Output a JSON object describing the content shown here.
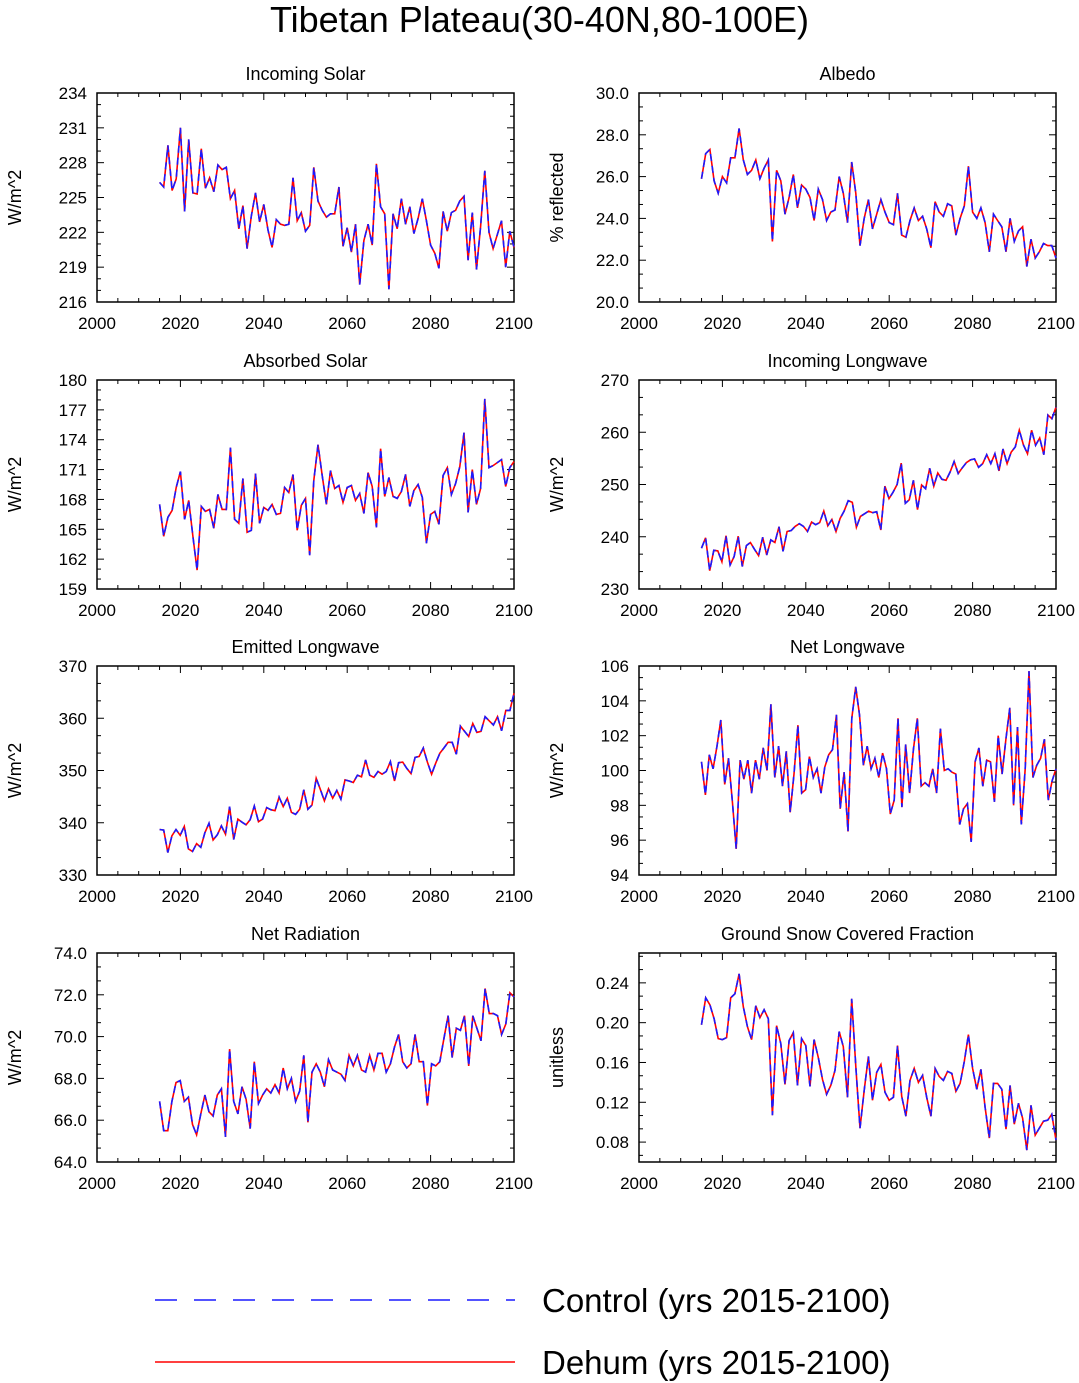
{
  "title": "Tibetan Plateau(30-40N,80-100E)",
  "legend": [
    {
      "label": "Control (yrs 2015-2100)",
      "color": "#1a1aff",
      "style": "dashed"
    },
    {
      "label": "Dehum (yrs 2015-2100)",
      "color": "#ff0000",
      "style": "solid"
    }
  ],
  "chart_data": [
    {
      "type": "line",
      "title": "Incoming Solar",
      "ylabel": "W/m^2",
      "xlim": [
        2000,
        2100
      ],
      "ylim": [
        216,
        234
      ],
      "xticks": [
        2000,
        2020,
        2040,
        2060,
        2080,
        2100
      ],
      "yticks": [
        "216",
        "219",
        "222",
        "225",
        "228",
        "231",
        "234"
      ],
      "x_start": 2015,
      "series": [
        {
          "values": [
            226.3,
            225.9,
            229.5,
            225.6,
            226.6,
            231.0,
            223.8,
            230.0,
            225.4,
            225.3,
            229.2,
            225.8,
            226.7,
            225.5,
            227.8,
            227.4,
            227.6,
            224.9,
            225.6,
            222.3,
            224.3,
            220.6,
            223.4,
            225.4,
            222.9,
            224.4,
            222.2,
            220.7,
            223.1,
            222.7,
            222.6,
            222.7,
            226.7,
            223.0,
            223.7,
            222.1,
            222.6,
            227.6,
            224.7,
            223.9,
            223.3,
            223.6,
            223.6,
            225.9,
            220.8,
            222.4,
            220.3,
            222.7,
            217.5,
            221.3,
            222.7,
            220.9,
            227.9,
            224.2,
            223.6,
            217.1,
            223.6,
            222.3,
            224.9,
            222.7,
            224.2,
            221.9,
            223.2,
            224.9,
            223.0,
            220.9,
            220.2,
            218.9,
            223.8,
            222.1,
            223.7,
            223.9,
            224.7,
            225.1,
            219.6,
            223.7,
            218.8,
            222.5,
            227.3,
            222.0,
            220.6,
            221.8,
            223.0,
            219.0,
            222.1,
            220.7
          ]
        }
      ]
    },
    {
      "type": "line",
      "title": "Albedo",
      "ylabel": "% reflected",
      "xlim": [
        2000,
        2100
      ],
      "ylim": [
        20,
        30
      ],
      "xticks": [
        2000,
        2020,
        2040,
        2060,
        2080,
        2100
      ],
      "yticks": [
        "20.0",
        "22.0",
        "24.0",
        "26.0",
        "28.0",
        "30.0"
      ],
      "x_start": 2015,
      "series": [
        {
          "values": [
            25.9,
            27.1,
            27.3,
            25.8,
            25.2,
            26.0,
            25.7,
            26.9,
            26.9,
            28.3,
            26.8,
            26.1,
            26.3,
            26.8,
            25.9,
            26.4,
            26.8,
            22.9,
            26.3,
            25.8,
            24.2,
            25.0,
            26.1,
            24.5,
            25.6,
            25.4,
            25.0,
            23.9,
            25.4,
            24.9,
            23.9,
            24.3,
            24.4,
            26.0,
            25.2,
            23.8,
            26.7,
            25.2,
            22.7,
            24.0,
            24.9,
            23.5,
            24.2,
            24.9,
            24.3,
            23.8,
            23.7,
            25.2,
            23.2,
            23.1,
            23.9,
            24.5,
            23.9,
            24.1,
            23.5,
            22.6,
            24.8,
            24.3,
            24.1,
            24.7,
            24.6,
            23.2,
            24.0,
            24.6,
            26.5,
            24.3,
            24.0,
            24.5,
            23.8,
            22.4,
            24.2,
            23.9,
            23.6,
            22.4,
            24.0,
            22.9,
            23.4,
            23.6,
            21.7,
            23.0,
            22.1,
            22.4,
            22.8,
            22.7,
            22.7,
            22.1
          ]
        }
      ]
    },
    {
      "type": "line",
      "title": "Absorbed Solar",
      "ylabel": "W/m^2",
      "xlim": [
        2000,
        2100
      ],
      "ylim": [
        159,
        180
      ],
      "xticks": [
        2000,
        2020,
        2040,
        2060,
        2080,
        2100
      ],
      "yticks": [
        "159",
        "162",
        "165",
        "168",
        "171",
        "174",
        "177",
        "180"
      ],
      "x_start": 2015,
      "series": [
        {
          "values": [
            167.5,
            164.3,
            166.2,
            166.9,
            169.2,
            170.8,
            166.0,
            167.9,
            164.3,
            160.9,
            167.3,
            166.8,
            167.0,
            165.1,
            168.5,
            167.0,
            167.0,
            173.2,
            166.0,
            165.6,
            170.1,
            164.7,
            164.9,
            170.6,
            165.6,
            167.2,
            166.9,
            167.5,
            166.5,
            166.6,
            169.2,
            168.7,
            170.5,
            164.9,
            167.4,
            168.1,
            162.4,
            169.9,
            173.5,
            170.4,
            167.5,
            170.9,
            169.1,
            169.4,
            167.7,
            169.2,
            169.4,
            167.9,
            168.6,
            166.6,
            170.7,
            169.3,
            165.2,
            173.1,
            168.3,
            170.2,
            168.3,
            168.1,
            168.8,
            170.5,
            167.3,
            168.9,
            169.5,
            168.2,
            163.6,
            166.5,
            166.8,
            165.5,
            170.4,
            171.2,
            168.5,
            169.6,
            171.3,
            174.7,
            166.7,
            171.0,
            167.5,
            169.1,
            178.1,
            171.2,
            171.4,
            171.7,
            172.0,
            169.3,
            171.2,
            171.8
          ]
        }
      ]
    },
    {
      "type": "line",
      "title": "Incoming Longwave",
      "ylabel": "W/m^2",
      "xlim": [
        2000,
        2100
      ],
      "ylim": [
        230,
        270
      ],
      "xticks": [
        2000,
        2020,
        2040,
        2060,
        2080,
        2100
      ],
      "yticks": [
        "230",
        "240",
        "250",
        "260",
        "270"
      ],
      "x_start": 2015,
      "series": [
        {
          "values": [
            237.8,
            239.8,
            233.5,
            237.4,
            237.3,
            235.2,
            240.2,
            234.6,
            236.2,
            240.1,
            234.3,
            238.3,
            238.9,
            237.6,
            236.4,
            239.9,
            236.5,
            239.4,
            238.9,
            241.9,
            237.2,
            241.0,
            241.2,
            242.0,
            242.5,
            242.0,
            241.0,
            242.8,
            242.3,
            242.7,
            244.9,
            242.1,
            243.3,
            241.0,
            243.5,
            244.9,
            246.9,
            246.6,
            241.8,
            243.9,
            244.4,
            244.9,
            244.6,
            244.8,
            241.3,
            249.7,
            247.3,
            248.5,
            250.0,
            254.1,
            246.4,
            247.1,
            250.8,
            245.2,
            249.9,
            249.2,
            253.1,
            249.7,
            252.2,
            251.0,
            250.8,
            252.4,
            254.4,
            252.1,
            253.2,
            254.2,
            254.7,
            254.9,
            253.3,
            254.0,
            255.7,
            254.0,
            255.9,
            252.6,
            256.8,
            254.0,
            256.2,
            257.2,
            260.4,
            257.6,
            255.9,
            260.4,
            257.5,
            258.9,
            255.7,
            263.3,
            262.6,
            264.8
          ]
        }
      ]
    },
    {
      "type": "line",
      "title": "Emitted Longwave",
      "ylabel": "W/m^2",
      "xlim": [
        2000,
        2100
      ],
      "ylim": [
        330,
        370
      ],
      "xticks": [
        2000,
        2020,
        2040,
        2060,
        2080,
        2100
      ],
      "yticks": [
        "330",
        "340",
        "350",
        "360",
        "370"
      ],
      "x_start": 2015,
      "series": [
        {
          "values": [
            338.7,
            338.6,
            334.3,
            337.5,
            338.7,
            337.6,
            339.3,
            335.0,
            334.5,
            336.0,
            335.3,
            338.1,
            339.9,
            336.7,
            337.7,
            339.4,
            337.8,
            343.1,
            336.8,
            340.7,
            340.1,
            339.6,
            340.6,
            343.2,
            340.2,
            340.7,
            342.9,
            342.5,
            342.3,
            344.9,
            343.1,
            344.7,
            342.0,
            341.6,
            342.6,
            346.3,
            342.6,
            343.4,
            348.5,
            346.4,
            344.2,
            346.5,
            344.7,
            346.2,
            344.5,
            348.2,
            348.0,
            347.7,
            349.1,
            348.8,
            352.0,
            349.1,
            348.7,
            349.8,
            349.3,
            349.8,
            351.7,
            348.0,
            351.5,
            351.6,
            350.4,
            349.4,
            352.5,
            352.7,
            354.3,
            351.6,
            349.3,
            351.4,
            353.3,
            354.3,
            355.4,
            355.4,
            353.1,
            358.5,
            357.5,
            356.5,
            359.0,
            357.3,
            357.5,
            360.3,
            359.5,
            358.7,
            360.3,
            357.6,
            361.5,
            361.5,
            364.8
          ]
        }
      ]
    },
    {
      "type": "line",
      "title": "Net Longwave",
      "ylabel": "W/m^2",
      "xlim": [
        2000,
        2100
      ],
      "ylim": [
        94,
        106
      ],
      "xticks": [
        2000,
        2020,
        2040,
        2060,
        2080,
        2100
      ],
      "yticks": [
        "94",
        "96",
        "98",
        "100",
        "102",
        "104",
        "106"
      ],
      "x_start": 2015,
      "series": [
        {
          "values": [
            100.5,
            98.6,
            100.9,
            100.1,
            101.4,
            102.9,
            99.2,
            100.7,
            98.2,
            95.5,
            100.6,
            99.5,
            100.6,
            98.7,
            100.6,
            99.5,
            101.3,
            100.0,
            103.8,
            99.6,
            101.4,
            99.1,
            101.1,
            97.6,
            99.8,
            102.6,
            98.7,
            98.9,
            100.8,
            99.6,
            100.1,
            98.7,
            100.2,
            100.9,
            101.2,
            103.2,
            97.8,
            99.9,
            96.5,
            103.0,
            104.8,
            103.2,
            100.3,
            101.4,
            100.1,
            100.7,
            99.6,
            101.0,
            100.1,
            97.5,
            98.3,
            103.0,
            97.9,
            101.5,
            98.7,
            101.2,
            103.0,
            99.1,
            99.3,
            99.1,
            100.1,
            98.7,
            102.4,
            100.0,
            100.1,
            99.9,
            99.8,
            96.9,
            97.8,
            98.1,
            95.9,
            100.5,
            101.3,
            99.1,
            100.6,
            100.5,
            98.2,
            102.0,
            99.8,
            101.8,
            103.6,
            98.0,
            102.5,
            96.9,
            100.1,
            105.7,
            99.6,
            100.3,
            100.7,
            101.8,
            98.3,
            99.4,
            100.1
          ]
        }
      ]
    },
    {
      "type": "line",
      "title": "Net Radiation",
      "ylabel": "W/m^2",
      "xlim": [
        2000,
        2100
      ],
      "ylim": [
        64,
        74
      ],
      "xticks": [
        2000,
        2020,
        2040,
        2060,
        2080,
        2100
      ],
      "yticks": [
        "64.0",
        "66.0",
        "68.0",
        "70.0",
        "72.0",
        "74.0"
      ],
      "x_start": 2015,
      "series": [
        {
          "values": [
            66.9,
            65.5,
            65.5,
            66.9,
            67.8,
            67.9,
            66.9,
            67.1,
            65.8,
            65.3,
            66.3,
            67.2,
            66.4,
            66.2,
            67.2,
            67.5,
            65.2,
            69.4,
            66.9,
            66.3,
            67.6,
            67.0,
            65.6,
            68.8,
            66.8,
            67.2,
            67.5,
            67.3,
            67.7,
            67.3,
            68.5,
            67.5,
            68.0,
            66.9,
            67.4,
            69.1,
            65.9,
            68.3,
            68.7,
            68.3,
            67.6,
            68.9,
            68.4,
            68.3,
            68.2,
            67.9,
            69.1,
            68.6,
            69.1,
            68.4,
            68.3,
            69.1,
            68.4,
            69.2,
            69.2,
            68.3,
            68.7,
            69.5,
            70.1,
            68.8,
            68.5,
            68.7,
            70.1,
            68.8,
            68.8,
            66.7,
            68.7,
            68.6,
            68.8,
            69.9,
            71.0,
            69.0,
            70.4,
            70.3,
            71.0,
            68.6,
            71.0,
            70.4,
            69.8,
            72.3,
            71.1,
            71.1,
            71.0,
            70.1,
            70.6,
            72.1,
            71.9
          ]
        }
      ]
    },
    {
      "type": "line",
      "title": "Ground Snow Covered Fraction",
      "ylabel": "unitless",
      "xlim": [
        2000,
        2100
      ],
      "ylim": [
        0.06,
        0.27
      ],
      "xticks": [
        2000,
        2020,
        2040,
        2060,
        2080,
        2100
      ],
      "yticks": [
        "0.08",
        "0.12",
        "0.16",
        "0.20",
        "0.24"
      ],
      "x_start": 2015,
      "series": [
        {
          "values": [
            0.198,
            0.225,
            0.218,
            0.204,
            0.184,
            0.183,
            0.185,
            0.225,
            0.229,
            0.249,
            0.216,
            0.196,
            0.183,
            0.217,
            0.205,
            0.213,
            0.204,
            0.107,
            0.197,
            0.179,
            0.138,
            0.182,
            0.19,
            0.137,
            0.184,
            0.177,
            0.136,
            0.183,
            0.165,
            0.143,
            0.128,
            0.137,
            0.152,
            0.191,
            0.176,
            0.125,
            0.224,
            0.156,
            0.094,
            0.132,
            0.166,
            0.122,
            0.15,
            0.158,
            0.13,
            0.122,
            0.125,
            0.177,
            0.126,
            0.106,
            0.142,
            0.154,
            0.14,
            0.147,
            0.125,
            0.106,
            0.154,
            0.146,
            0.142,
            0.151,
            0.149,
            0.131,
            0.139,
            0.161,
            0.188,
            0.154,
            0.133,
            0.153,
            0.115,
            0.084,
            0.139,
            0.139,
            0.133,
            0.093,
            0.137,
            0.098,
            0.119,
            0.104,
            0.072,
            0.117,
            0.087,
            0.094,
            0.101,
            0.102,
            0.108,
            0.082
          ]
        }
      ]
    }
  ]
}
